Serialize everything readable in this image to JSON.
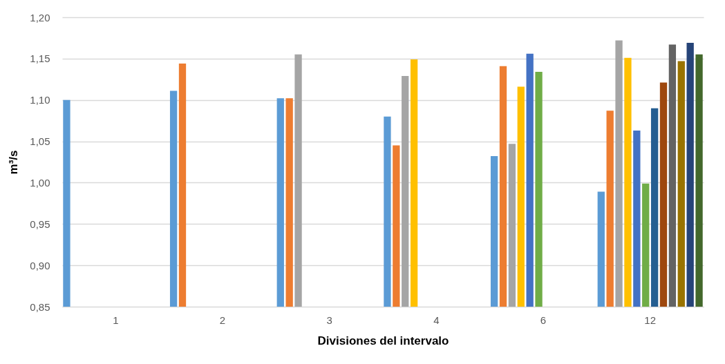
{
  "chart_data": {
    "type": "bar",
    "xlabel": "Divisiones del intervalo",
    "ylabel": "m³/s",
    "categories": [
      "1",
      "2",
      "3",
      "4",
      "6",
      "12"
    ],
    "series": [
      {
        "color": "#5b9bd5",
        "values": [
          1.1,
          1.111,
          1.102,
          1.08,
          1.032,
          0.989
        ]
      },
      {
        "color": "#ed7d31",
        "values": [
          null,
          1.144,
          1.102,
          1.045,
          1.141,
          1.087
        ]
      },
      {
        "color": "#a5a5a5",
        "values": [
          null,
          null,
          1.155,
          1.129,
          1.047,
          1.172
        ]
      },
      {
        "color": "#ffc000",
        "values": [
          null,
          null,
          null,
          1.149,
          1.116,
          1.151
        ]
      },
      {
        "color": "#4472c4",
        "values": [
          null,
          null,
          null,
          null,
          1.156,
          1.063
        ]
      },
      {
        "color": "#70ad47",
        "values": [
          null,
          null,
          null,
          null,
          1.134,
          0.999
        ]
      },
      {
        "color": "#255e91",
        "values": [
          null,
          null,
          null,
          null,
          null,
          1.09
        ]
      },
      {
        "color": "#9e480e",
        "values": [
          null,
          null,
          null,
          null,
          null,
          1.121
        ]
      },
      {
        "color": "#636363",
        "values": [
          null,
          null,
          null,
          null,
          null,
          1.167
        ]
      },
      {
        "color": "#997300",
        "values": [
          null,
          null,
          null,
          null,
          null,
          1.147
        ]
      },
      {
        "color": "#264478",
        "values": [
          null,
          null,
          null,
          null,
          null,
          1.169
        ]
      },
      {
        "color": "#43682b",
        "values": [
          null,
          null,
          null,
          null,
          null,
          1.155
        ]
      }
    ],
    "ylim": [
      0.85,
      1.2
    ],
    "yticks": [
      {
        "value": 0.85,
        "label": "0,85"
      },
      {
        "value": 0.9,
        "label": "0,90"
      },
      {
        "value": 0.95,
        "label": "0,95"
      },
      {
        "value": 1.0,
        "label": "1,00"
      },
      {
        "value": 1.05,
        "label": "1,05"
      },
      {
        "value": 1.1,
        "label": "1,10"
      },
      {
        "value": 1.15,
        "label": "1,15"
      },
      {
        "value": 1.2,
        "label": "1,20"
      }
    ],
    "grid": "y",
    "legend": false
  }
}
